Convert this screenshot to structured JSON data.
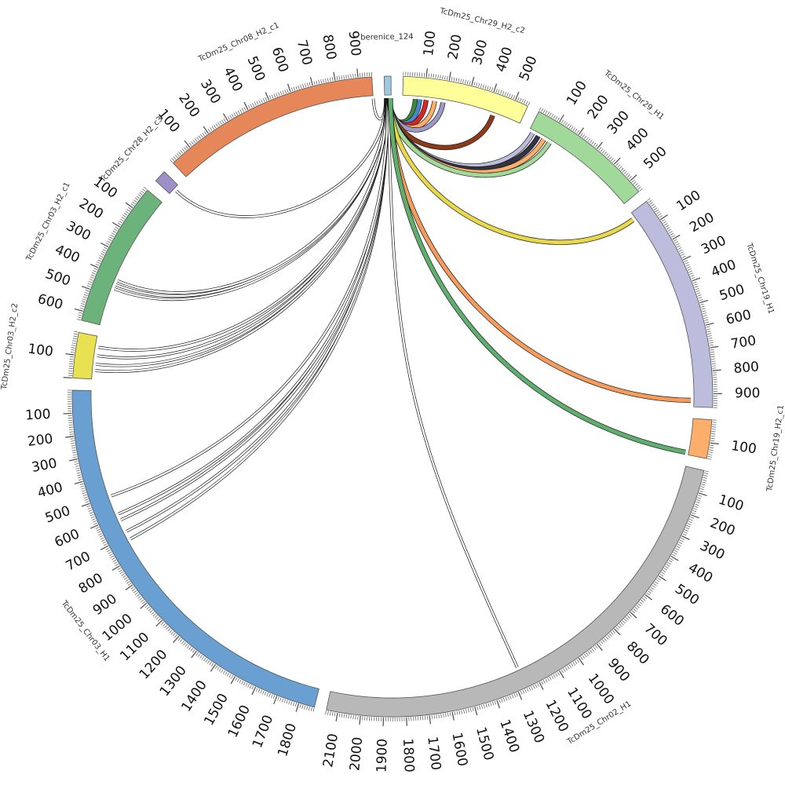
{
  "diagram": {
    "type": "circos",
    "tick_step": 100,
    "segments": [
      {
        "name": "berenice_124",
        "length": 30,
        "color": "#9ecae1",
        "ticks": false,
        "clockwise": true
      },
      {
        "name": "TcDm25_Chr29_H2_c2",
        "length": 560,
        "color": "#ffff99",
        "ticks": true,
        "clockwise": true
      },
      {
        "name": "TcDm25_Chr29_H1",
        "length": 560,
        "color": "#a1d99b",
        "ticks": true,
        "clockwise": true
      },
      {
        "name": "TcDm25_Chr19_H1",
        "length": 960,
        "color": "#bcbddc",
        "ticks": true,
        "clockwise": true
      },
      {
        "name": "TcDm25_Chr19_H2_c1",
        "length": 170,
        "color": "#fdae6b",
        "ticks": true,
        "clockwise": true
      },
      {
        "name": "TcDm25_Chr02_H1",
        "length": 2150,
        "color": "#b8b8b8",
        "ticks": true,
        "clockwise": true
      },
      {
        "name": "TcDm25_Chr03_H1",
        "length": 1870,
        "color": "#6a9fd1",
        "ticks": true,
        "clockwise": false
      },
      {
        "name": "TcDm25_Chr03_H2_c2",
        "length": 200,
        "color": "#e8e150",
        "ticks": true,
        "clockwise": false
      },
      {
        "name": "TcDm25_Chr03_H2_c1",
        "length": 640,
        "color": "#6bb37a",
        "ticks": true,
        "clockwise": false
      },
      {
        "name": "TcDm25_Chr28_H2_c3",
        "length": 55,
        "color": "#9f8fc8",
        "ticks": false,
        "clockwise": true
      },
      {
        "name": "TcDm25_Chr08_H2_c1",
        "length": 960,
        "color": "#e6875a",
        "ticks": true,
        "clockwise": true
      }
    ],
    "links": [
      {
        "from": "berenice_124",
        "from_pos": 3,
        "to": "TcDm25_Chr08_H2_c1",
        "to_pos": 960,
        "color": "#ffffff"
      },
      {
        "from": "berenice_124",
        "from_pos": 5,
        "to": "TcDm25_Chr28_H2_c3",
        "to_pos": 30,
        "color": "#ffffff"
      },
      {
        "from": "berenice_124",
        "from_pos": 6,
        "to": "TcDm25_Chr03_H2_c1",
        "to_pos": 460,
        "color": "#ffffff"
      },
      {
        "from": "berenice_124",
        "from_pos": 7,
        "to": "TcDm25_Chr03_H2_c1",
        "to_pos": 440,
        "color": "#ffffff"
      },
      {
        "from": "berenice_124",
        "from_pos": 8,
        "to": "TcDm25_Chr03_H2_c1",
        "to_pos": 420,
        "color": "#ffffff"
      },
      {
        "from": "berenice_124",
        "from_pos": 8,
        "to": "TcDm25_Chr03_H2_c2",
        "to_pos": 160,
        "color": "#ffffff"
      },
      {
        "from": "berenice_124",
        "from_pos": 9,
        "to": "TcDm25_Chr03_H2_c2",
        "to_pos": 130,
        "color": "#ffffff"
      },
      {
        "from": "berenice_124",
        "from_pos": 10,
        "to": "TcDm25_Chr03_H2_c2",
        "to_pos": 90,
        "color": "#ffffff"
      },
      {
        "from": "berenice_124",
        "from_pos": 10,
        "to": "TcDm25_Chr03_H2_c2",
        "to_pos": 50,
        "color": "#ffffff"
      },
      {
        "from": "berenice_124",
        "from_pos": 11,
        "to": "TcDm25_Chr03_H1",
        "to_pos": 720,
        "color": "#ffffff"
      },
      {
        "from": "berenice_124",
        "from_pos": 11,
        "to": "TcDm25_Chr03_H1",
        "to_pos": 680,
        "color": "#ffffff"
      },
      {
        "from": "berenice_124",
        "from_pos": 12,
        "to": "TcDm25_Chr03_H1",
        "to_pos": 620,
        "color": "#ffffff"
      },
      {
        "from": "berenice_124",
        "from_pos": 12,
        "to": "TcDm25_Chr03_H1",
        "to_pos": 590,
        "color": "#ffffff"
      },
      {
        "from": "berenice_124",
        "from_pos": 13,
        "to": "TcDm25_Chr03_H1",
        "to_pos": 500,
        "color": "#ffffff"
      },
      {
        "from": "berenice_124",
        "from_pos": 18,
        "to": "TcDm25_Chr02_H1",
        "to_pos": 1260,
        "color": "#ffffff"
      },
      {
        "from": "berenice_124",
        "from_pos": 20,
        "to": "TcDm25_Chr29_H2_c2",
        "to_pos": 60,
        "color": "#3d8a3d"
      },
      {
        "from": "berenice_124",
        "from_pos": 20,
        "to": "TcDm25_Chr29_H2_c2",
        "to_pos": 80,
        "color": "#4a86c8"
      },
      {
        "from": "berenice_124",
        "from_pos": 21,
        "to": "TcDm25_Chr29_H2_c2",
        "to_pos": 110,
        "color": "#d62728"
      },
      {
        "from": "berenice_124",
        "from_pos": 21,
        "to": "TcDm25_Chr29_H2_c2",
        "to_pos": 150,
        "color": "#fdae6b"
      },
      {
        "from": "berenice_124",
        "from_pos": 22,
        "to": "TcDm25_Chr29_H2_c2",
        "to_pos": 190,
        "color": "#9e9ac8"
      },
      {
        "from": "berenice_124",
        "from_pos": 22,
        "to": "TcDm25_Chr29_H2_c2",
        "to_pos": 430,
        "color": "#8c3a1a"
      },
      {
        "from": "berenice_124",
        "from_pos": 23,
        "to": "TcDm25_Chr29_H1",
        "to_pos": 20,
        "color": "#bcbddc"
      },
      {
        "from": "berenice_124",
        "from_pos": 23,
        "to": "TcDm25_Chr29_H1",
        "to_pos": 50,
        "color": "#333344"
      },
      {
        "from": "berenice_124",
        "from_pos": 24,
        "to": "TcDm25_Chr29_H1",
        "to_pos": 80,
        "color": "#fdae6b"
      },
      {
        "from": "berenice_124",
        "from_pos": 24,
        "to": "TcDm25_Chr29_H1",
        "to_pos": 110,
        "color": "#a1d99b"
      },
      {
        "from": "berenice_124",
        "from_pos": 25,
        "to": "TcDm25_Chr19_H1",
        "to_pos": 30,
        "color": "#e8d84a"
      },
      {
        "from": "berenice_124",
        "from_pos": 26,
        "to": "TcDm25_Chr19_H1",
        "to_pos": 930,
        "color": "#f59b5b"
      },
      {
        "from": "berenice_124",
        "from_pos": 27,
        "to": "TcDm25_Chr19_H2_c1",
        "to_pos": 160,
        "color": "#5fae6e"
      }
    ]
  }
}
